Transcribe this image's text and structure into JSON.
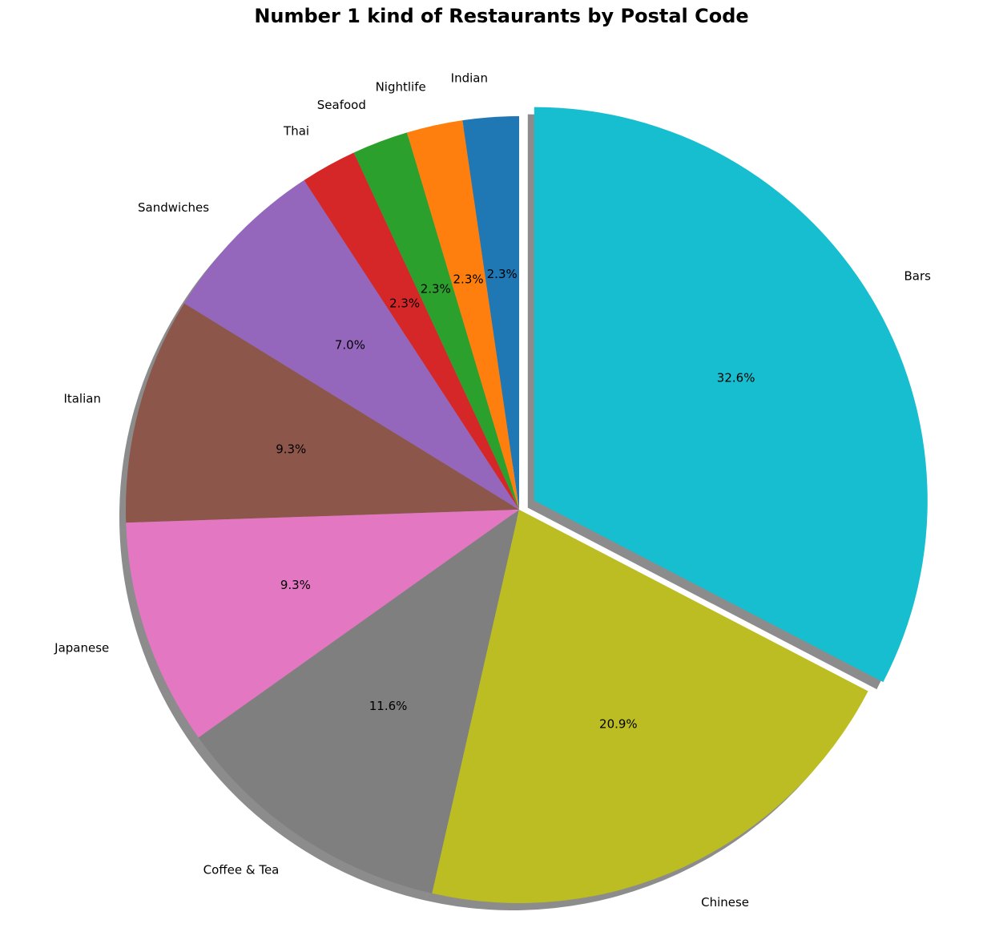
{
  "chart_data": {
    "type": "pie",
    "title": "Number 1 kind of Restaurants by Postal Code",
    "categories": [
      "Indian",
      "Nightlife",
      "Seafood",
      "Thai",
      "Sandwiches",
      "Italian",
      "Japanese",
      "Coffee & Tea",
      "Chinese",
      "Bars"
    ],
    "values": [
      2.3,
      2.3,
      2.3,
      2.3,
      7.0,
      9.3,
      9.3,
      11.6,
      20.9,
      32.6
    ],
    "percent_labels": [
      "2.3%",
      "2.3%",
      "2.3%",
      "2.3%",
      "7.0%",
      "9.3%",
      "9.3%",
      "11.6%",
      "20.9%",
      "32.6%"
    ],
    "colors": [
      "#1f77b4",
      "#ff7f0e",
      "#2ca02c",
      "#d62728",
      "#9467bd",
      "#8c564b",
      "#e377c2",
      "#7f7f7f",
      "#bcbd22",
      "#17becf"
    ],
    "exploded": [
      "Bars"
    ],
    "shadow": true,
    "start_angle_deg": 90,
    "direction": "counterclockwise"
  }
}
